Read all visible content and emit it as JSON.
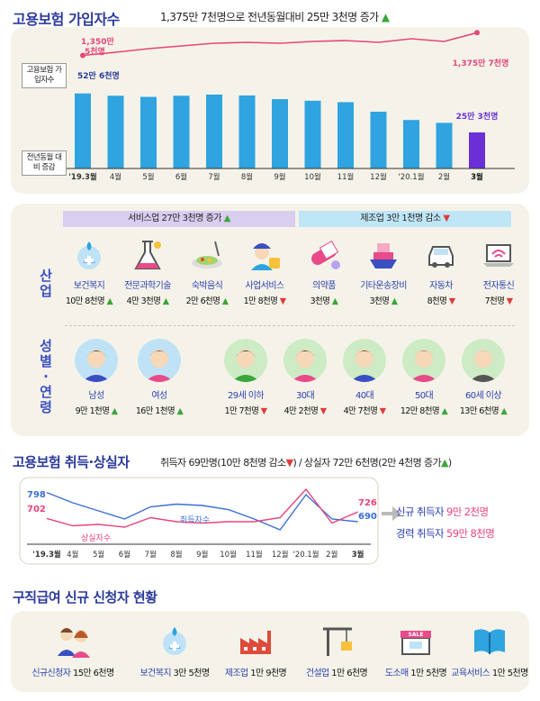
{
  "sec1": {
    "title": "고용보험 가입자수",
    "subtitle": "1,375만 7천명으로 전년동월대비 25만 3천명 증가",
    "legend_line": "고용보험 가입자수",
    "legend_bar": "전년동월 대비 증감"
  },
  "chart_data": [
    {
      "type": "bar",
      "categories": [
        "'19.3월",
        "4월",
        "5월",
        "6월",
        "7월",
        "8월",
        "9월",
        "10월",
        "11월",
        "12월",
        "'20.1월",
        "2월",
        "3월"
      ],
      "series": [
        {
          "name": "전년동월 대비 증감",
          "values": [
            52.6,
            51.0,
            50.2,
            51.0,
            51.8,
            51.2,
            48.6,
            47.5,
            46.5,
            39.8,
            34.0,
            32.0,
            25.3
          ]
        },
        {
          "name": "고용보험 가입자수",
          "values": [
            1350.5,
            1354,
            1358,
            1361,
            1364,
            1365,
            1364,
            1366,
            1367,
            1365,
            1369,
            1366,
            1375.7
          ]
        }
      ],
      "annotations": {
        "bar_first": "52만 6천명",
        "bar_last": "25만 3천명",
        "line_first": "1,350만 5천명",
        "line_last": "1,375만 7천명"
      },
      "colors": {
        "bar": "#2fa4e0",
        "bar_last": "#6a2fd6",
        "line": "#e8457a"
      }
    },
    {
      "type": "line",
      "categories": [
        "'19.3월",
        "4월",
        "5월",
        "6월",
        "7월",
        "8월",
        "9월",
        "10월",
        "11월",
        "12월",
        "'20.1월",
        "2월",
        "3월"
      ],
      "series": [
        {
          "name": "취득자수",
          "values": [
            798,
            760,
            730,
            700,
            745,
            755,
            750,
            735,
            700,
            660,
            790,
            700,
            690
          ]
        },
        {
          "name": "상실자수",
          "values": [
            702,
            675,
            680,
            670,
            705,
            690,
            685,
            690,
            690,
            705,
            810,
            685,
            726
          ]
        }
      ],
      "annotations": {
        "acq_first": "798",
        "loss_first": "702",
        "acq_last": "690",
        "loss_last": "726",
        "acq_label": "취득자수",
        "loss_label": "상실자수"
      },
      "colors": {
        "acq": "#3a6fd6",
        "loss": "#e8457a"
      }
    }
  ],
  "sec2": {
    "service_header": "서비스업 27만 3천명 증가",
    "manufacturing_header": "제조업 3만 1천명 감소",
    "industry_label": "산업",
    "gender_label": "성별·연령",
    "industries": [
      {
        "name": "보건복지",
        "value": "10만 8천명",
        "dir": "up",
        "icon": "medical-icon"
      },
      {
        "name": "전문과학기술",
        "value": "4만 3천명",
        "dir": "up",
        "icon": "science-icon"
      },
      {
        "name": "숙박음식",
        "value": "2만 6천명",
        "dir": "up",
        "icon": "food-icon"
      },
      {
        "name": "사업서비스",
        "value": "1만 8천명",
        "dir": "down",
        "icon": "security-guard-icon"
      },
      {
        "name": "의약품",
        "value": "3천명",
        "dir": "up",
        "icon": "pill-icon"
      },
      {
        "name": "기타운송장비",
        "value": "3천명",
        "dir": "up",
        "icon": "ship-icon"
      },
      {
        "name": "자동차",
        "value": "8천명",
        "dir": "down",
        "icon": "car-icon"
      },
      {
        "name": "전자통신",
        "value": "7천명",
        "dir": "down",
        "icon": "wifi-laptop-icon"
      }
    ],
    "demographics": [
      {
        "name": "남성",
        "value": "9만 1천명",
        "dir": "up"
      },
      {
        "name": "여성",
        "value": "16만 1천명",
        "dir": "up"
      },
      {
        "name": "29세 이하",
        "value": "1만 7천명",
        "dir": "down"
      },
      {
        "name": "30대",
        "value": "4만 2천명",
        "dir": "down"
      },
      {
        "name": "40대",
        "value": "4만 7천명",
        "dir": "down"
      },
      {
        "name": "50대",
        "value": "12만 8천명",
        "dir": "up"
      },
      {
        "name": "60세 이상",
        "value": "13만 6천명",
        "dir": "up"
      }
    ]
  },
  "sec3": {
    "title": "고용보험 취득·상실자",
    "sub_a": "취득자 69만명(10만 8천명 감소",
    "sub_b": ") / 상실자 72만 6천명(2만 4천명 증가",
    "sub_c": ")",
    "new_label": "신규 취득자",
    "new_value": "9만 2천명",
    "career_label": "경력 취득자",
    "career_value": "59만 8천명"
  },
  "sec4": {
    "title": "구직급여 신규 신청자 현황",
    "items": [
      {
        "name": "신규신청자",
        "value": "15만 6천명",
        "icon": "people-icon"
      },
      {
        "name": "보건복지",
        "value": "3만 5천명",
        "icon": "medical-icon"
      },
      {
        "name": "제조업",
        "value": "1만 9천명",
        "icon": "factory-icon"
      },
      {
        "name": "건설업",
        "value": "1만 6천명",
        "icon": "crane-icon"
      },
      {
        "name": "도소매",
        "value": "1만 5천명",
        "icon": "store-icon"
      },
      {
        "name": "교육서비스",
        "value": "1만 5천명",
        "icon": "book-icon"
      }
    ],
    "store_sign": "SALE"
  }
}
